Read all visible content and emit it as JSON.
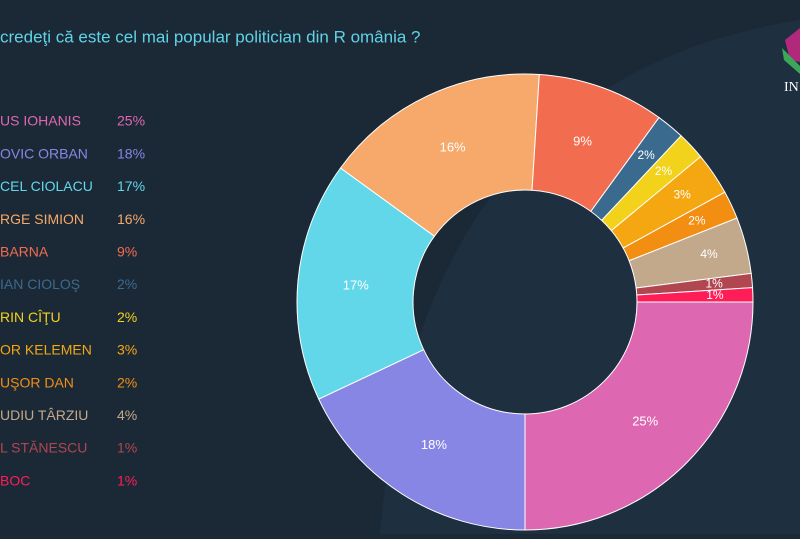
{
  "chart_data": {
    "type": "donut",
    "title": "credeţi că este cel mai popular politician din R omânia ?",
    "logo_text": "IN",
    "categories": [
      "US IOHANIS",
      "OVIC ORBAN",
      "CEL CIOLACU",
      "RGE SIMION",
      "BARNA",
      "IAN CIOLOŞ",
      "RIN CÎŢU",
      "OR KELEMEN",
      "UŞOR DAN",
      "UDIU TÂRZIU",
      "L STĂNESCU",
      "BOC"
    ],
    "values": [
      25,
      18,
      17,
      16,
      9,
      2,
      2,
      3,
      2,
      4,
      1,
      1
    ],
    "value_labels": [
      "25%",
      "18%",
      "17%",
      "16%",
      "9%",
      "2%",
      "2%",
      "3%",
      "2%",
      "4%",
      "1%",
      "1%"
    ],
    "colors": [
      "#de67b2",
      "#8886e4",
      "#63d7ea",
      "#f6a96a",
      "#f26c4f",
      "#3b6a8f",
      "#f3d21b",
      "#f5a711",
      "#f28e12",
      "#c2a98b",
      "#b0464f",
      "#ff1d58"
    ]
  }
}
